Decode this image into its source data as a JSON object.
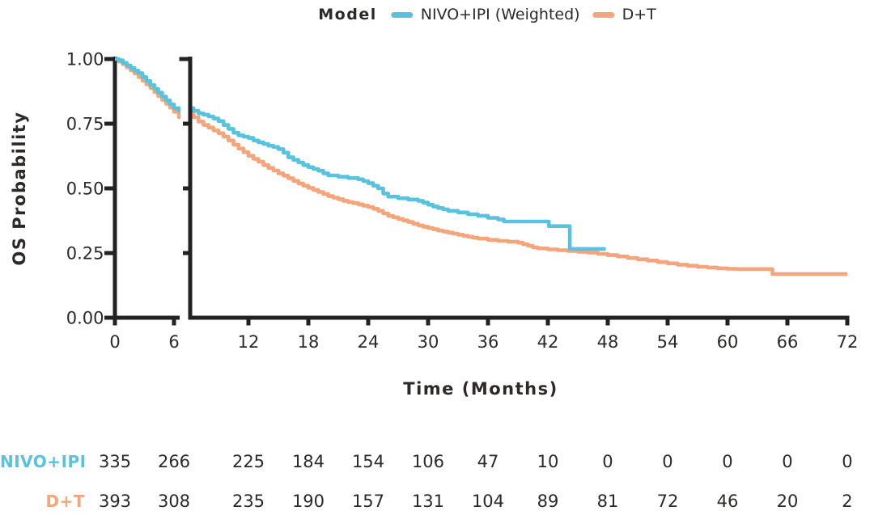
{
  "legend": {
    "title": "Model",
    "items": [
      {
        "label": "NIVO+IPI (Weighted)",
        "color": "#58C3DC"
      },
      {
        "label": "D+T",
        "color": "#F4A57C"
      }
    ]
  },
  "axes": {
    "y": {
      "label": "OS Probability",
      "ticks": [
        "1.00",
        "0.75",
        "0.50",
        "0.25",
        "0.00"
      ],
      "range": [
        0,
        1
      ]
    },
    "x": {
      "label": "Time (Months)",
      "ticks": [
        0,
        6,
        12,
        18,
        24,
        30,
        36,
        42,
        48,
        54,
        60,
        66,
        72
      ],
      "axis_break": {
        "left_panel_months": [
          0,
          6
        ],
        "right_panel_months": [
          6.2,
          72
        ]
      }
    }
  },
  "colors": {
    "axis": "#242122",
    "text": "#2b2a29",
    "background": "#FFFFFF",
    "nivo_ipi": "#58C3DC",
    "d_t": "#F4A57C"
  },
  "chart_data": {
    "type": "line",
    "subtype": "kaplan-meier-step",
    "title": "",
    "xlabel": "Time (Months)",
    "ylabel": "OS Probability",
    "xlim": [
      0,
      72
    ],
    "ylim": [
      0,
      1
    ],
    "grid": false,
    "legend_position": "top",
    "x_axis_break_between_months": [
      6,
      6.2
    ],
    "series": [
      {
        "name": "NIVO+IPI (Weighted)",
        "color": "#58C3DC",
        "end_month": 47.8,
        "points": [
          [
            0,
            1.0
          ],
          [
            0.4,
            0.995
          ],
          [
            0.8,
            0.985
          ],
          [
            1.2,
            0.975
          ],
          [
            1.6,
            0.965
          ],
          [
            2,
            0.955
          ],
          [
            2.4,
            0.945
          ],
          [
            2.8,
            0.93
          ],
          [
            3.2,
            0.915
          ],
          [
            3.6,
            0.9
          ],
          [
            4,
            0.885
          ],
          [
            4.4,
            0.87
          ],
          [
            4.8,
            0.855
          ],
          [
            5.2,
            0.84
          ],
          [
            5.6,
            0.825
          ],
          [
            6,
            0.81
          ],
          [
            6.5,
            0.8
          ],
          [
            7,
            0.79
          ],
          [
            7.5,
            0.785
          ],
          [
            8,
            0.778
          ],
          [
            8.5,
            0.77
          ],
          [
            9,
            0.76
          ],
          [
            9.5,
            0.745
          ],
          [
            10,
            0.73
          ],
          [
            10.5,
            0.715
          ],
          [
            11,
            0.705
          ],
          [
            11.5,
            0.7
          ],
          [
            12,
            0.695
          ],
          [
            12.5,
            0.685
          ],
          [
            13,
            0.678
          ],
          [
            13.5,
            0.672
          ],
          [
            14,
            0.665
          ],
          [
            14.5,
            0.66
          ],
          [
            15,
            0.652
          ],
          [
            15.5,
            0.638
          ],
          [
            16,
            0.62
          ],
          [
            16.5,
            0.61
          ],
          [
            17,
            0.6
          ],
          [
            17.5,
            0.59
          ],
          [
            18,
            0.582
          ],
          [
            18.5,
            0.575
          ],
          [
            19,
            0.568
          ],
          [
            19.5,
            0.558
          ],
          [
            20,
            0.55
          ],
          [
            21,
            0.545
          ],
          [
            22,
            0.54
          ],
          [
            23,
            0.535
          ],
          [
            23.5,
            0.528
          ],
          [
            24,
            0.52
          ],
          [
            24.5,
            0.51
          ],
          [
            25,
            0.5
          ],
          [
            25.5,
            0.48
          ],
          [
            26,
            0.468
          ],
          [
            27,
            0.462
          ],
          [
            28,
            0.457
          ],
          [
            29,
            0.452
          ],
          [
            29.5,
            0.445
          ],
          [
            30,
            0.437
          ],
          [
            30.5,
            0.43
          ],
          [
            31,
            0.424
          ],
          [
            31.5,
            0.419
          ],
          [
            32,
            0.413
          ],
          [
            33,
            0.407
          ],
          [
            34,
            0.4
          ],
          [
            35,
            0.394
          ],
          [
            36,
            0.386
          ],
          [
            37,
            0.38
          ],
          [
            37.6,
            0.372
          ],
          [
            42.1,
            0.354
          ],
          [
            44.2,
            0.266
          ]
        ]
      },
      {
        "name": "D+T",
        "color": "#F4A57C",
        "end_month": 72,
        "points": [
          [
            0,
            1.0
          ],
          [
            0.4,
            0.99
          ],
          [
            0.8,
            0.98
          ],
          [
            1.2,
            0.968
          ],
          [
            1.6,
            0.956
          ],
          [
            2,
            0.944
          ],
          [
            2.4,
            0.93
          ],
          [
            2.8,
            0.916
          ],
          [
            3.2,
            0.902
          ],
          [
            3.6,
            0.888
          ],
          [
            4,
            0.872
          ],
          [
            4.4,
            0.857
          ],
          [
            4.8,
            0.842
          ],
          [
            5.2,
            0.827
          ],
          [
            5.6,
            0.812
          ],
          [
            6,
            0.796
          ],
          [
            6.5,
            0.775
          ],
          [
            7,
            0.758
          ],
          [
            7.5,
            0.745
          ],
          [
            8,
            0.735
          ],
          [
            8.5,
            0.724
          ],
          [
            9,
            0.713
          ],
          [
            9.5,
            0.7
          ],
          [
            10,
            0.685
          ],
          [
            10.5,
            0.669
          ],
          [
            11,
            0.654
          ],
          [
            11.5,
            0.64
          ],
          [
            12,
            0.626
          ],
          [
            12.5,
            0.614
          ],
          [
            13,
            0.603
          ],
          [
            13.5,
            0.59
          ],
          [
            14,
            0.579
          ],
          [
            14.5,
            0.569
          ],
          [
            15,
            0.558
          ],
          [
            15.5,
            0.549
          ],
          [
            16,
            0.539
          ],
          [
            16.5,
            0.529
          ],
          [
            17,
            0.519
          ],
          [
            17.5,
            0.51
          ],
          [
            18,
            0.502
          ],
          [
            18.5,
            0.494
          ],
          [
            19,
            0.486
          ],
          [
            19.5,
            0.478
          ],
          [
            20,
            0.47
          ],
          [
            20.5,
            0.464
          ],
          [
            21,
            0.458
          ],
          [
            21.5,
            0.452
          ],
          [
            22,
            0.447
          ],
          [
            22.5,
            0.443
          ],
          [
            23,
            0.438
          ],
          [
            23.5,
            0.433
          ],
          [
            24,
            0.428
          ],
          [
            24.5,
            0.421
          ],
          [
            25,
            0.413
          ],
          [
            25.5,
            0.403
          ],
          [
            26,
            0.394
          ],
          [
            26.5,
            0.388
          ],
          [
            27,
            0.382
          ],
          [
            27.5,
            0.376
          ],
          [
            28,
            0.37
          ],
          [
            28.5,
            0.363
          ],
          [
            29,
            0.357
          ],
          [
            29.5,
            0.352
          ],
          [
            30,
            0.347
          ],
          [
            30.5,
            0.342
          ],
          [
            31,
            0.337
          ],
          [
            31.5,
            0.333
          ],
          [
            32,
            0.329
          ],
          [
            32.5,
            0.325
          ],
          [
            33,
            0.321
          ],
          [
            33.5,
            0.317
          ],
          [
            34,
            0.313
          ],
          [
            34.5,
            0.309
          ],
          [
            35,
            0.306
          ],
          [
            36,
            0.301
          ],
          [
            37,
            0.297
          ],
          [
            38,
            0.294
          ],
          [
            39,
            0.29
          ],
          [
            39.5,
            0.284
          ],
          [
            40,
            0.278
          ],
          [
            40.5,
            0.272
          ],
          [
            41,
            0.268
          ],
          [
            42,
            0.264
          ],
          [
            43,
            0.261
          ],
          [
            44,
            0.258
          ],
          [
            45,
            0.255
          ],
          [
            46,
            0.252
          ],
          [
            47,
            0.247
          ],
          [
            48,
            0.242
          ],
          [
            49,
            0.237
          ],
          [
            50,
            0.231
          ],
          [
            51,
            0.226
          ],
          [
            52,
            0.221
          ],
          [
            53,
            0.215
          ],
          [
            54,
            0.21
          ],
          [
            55,
            0.205
          ],
          [
            56,
            0.201
          ],
          [
            57,
            0.197
          ],
          [
            58,
            0.194
          ],
          [
            59,
            0.191
          ],
          [
            60,
            0.189
          ],
          [
            61,
            0.188
          ],
          [
            64.5,
            0.169
          ]
        ]
      }
    ]
  },
  "risk_table": {
    "time_points": [
      0,
      6,
      12,
      18,
      24,
      30,
      36,
      42,
      48,
      54,
      60,
      66,
      72
    ],
    "rows": [
      {
        "label": "NIVO+IPI",
        "color": "#58C3DC",
        "values": [
          335,
          266,
          225,
          184,
          154,
          106,
          47,
          10,
          0,
          0,
          0,
          0,
          0
        ]
      },
      {
        "label": "D+T",
        "color": "#F4A57C",
        "values": [
          393,
          308,
          235,
          190,
          157,
          131,
          104,
          89,
          81,
          72,
          46,
          20,
          2
        ]
      }
    ]
  }
}
